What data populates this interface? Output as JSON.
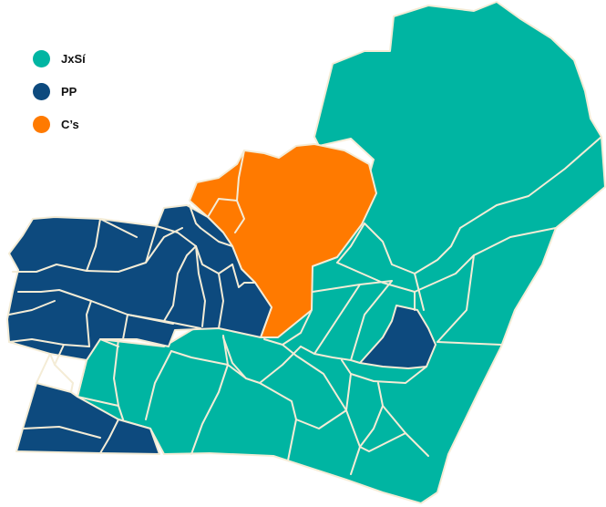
{
  "legend": [
    {
      "label": "JxSí",
      "color": "#00b5a2"
    },
    {
      "label": "PP",
      "color": "#0d4a7e"
    },
    {
      "label": "C’s",
      "color": "#ff7a00"
    }
  ],
  "colors": {
    "jxsi": "#00b5a2",
    "pp": "#0d4a7e",
    "cs": "#ff7a00",
    "border": "#f4ecd6"
  }
}
